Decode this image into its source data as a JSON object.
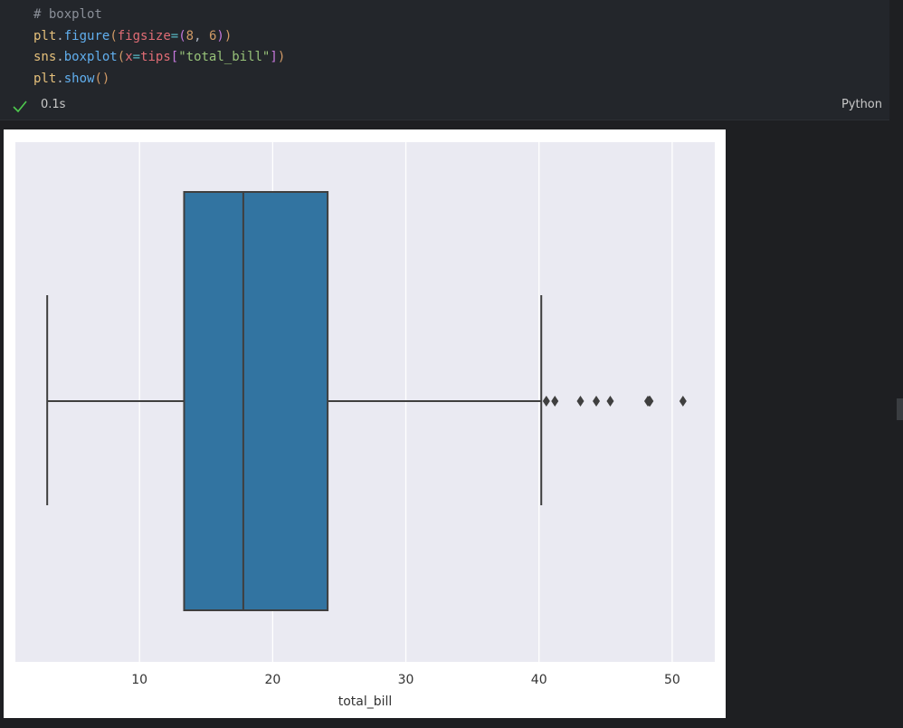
{
  "cell": {
    "code_lines": [
      [
        {
          "text": "# boxplot",
          "color": "#8a8f98"
        }
      ],
      [
        {
          "text": "plt",
          "color": "#e5c07b"
        },
        {
          "text": ".",
          "color": "#abb2bf"
        },
        {
          "text": "figure",
          "color": "#61afef"
        },
        {
          "text": "(",
          "color": "#d19a66"
        },
        {
          "text": "figsize",
          "color": "#e06c75"
        },
        {
          "text": "=",
          "color": "#56b6c2"
        },
        {
          "text": "(",
          "color": "#c678dd"
        },
        {
          "text": "8",
          "color": "#d19a66"
        },
        {
          "text": ", ",
          "color": "#abb2bf"
        },
        {
          "text": "6",
          "color": "#d19a66"
        },
        {
          "text": ")",
          "color": "#c678dd"
        },
        {
          "text": ")",
          "color": "#d19a66"
        }
      ],
      [
        {
          "text": "sns",
          "color": "#e5c07b"
        },
        {
          "text": ".",
          "color": "#abb2bf"
        },
        {
          "text": "boxplot",
          "color": "#61afef"
        },
        {
          "text": "(",
          "color": "#d19a66"
        },
        {
          "text": "x",
          "color": "#e06c75"
        },
        {
          "text": "=",
          "color": "#56b6c2"
        },
        {
          "text": "tips",
          "color": "#e06c75"
        },
        {
          "text": "[",
          "color": "#c678dd"
        },
        {
          "text": "\"total_bill\"",
          "color": "#98c379"
        },
        {
          "text": "]",
          "color": "#c678dd"
        },
        {
          "text": ")",
          "color": "#d19a66"
        }
      ],
      [
        {
          "text": "plt",
          "color": "#e5c07b"
        },
        {
          "text": ".",
          "color": "#abb2bf"
        },
        {
          "text": "show",
          "color": "#61afef"
        },
        {
          "text": "()",
          "color": "#d19a66"
        }
      ]
    ],
    "status_time": "0.1s",
    "language": "Python"
  },
  "chart_data": {
    "type": "box",
    "xlabel": "total_bill",
    "xlim": [
      0.68,
      53.2
    ],
    "xticks": [
      10,
      20,
      30,
      40,
      50
    ],
    "grid": true,
    "color": "#3274a1",
    "line_color": "#3f3f3f",
    "whislo": 3.07,
    "q1": 13.35,
    "med": 17.795,
    "q3": 24.1275,
    "whishi": 40.17,
    "fliers": [
      40.55,
      41.19,
      43.11,
      44.3,
      45.35,
      48.17,
      48.27,
      48.33,
      50.81
    ]
  }
}
